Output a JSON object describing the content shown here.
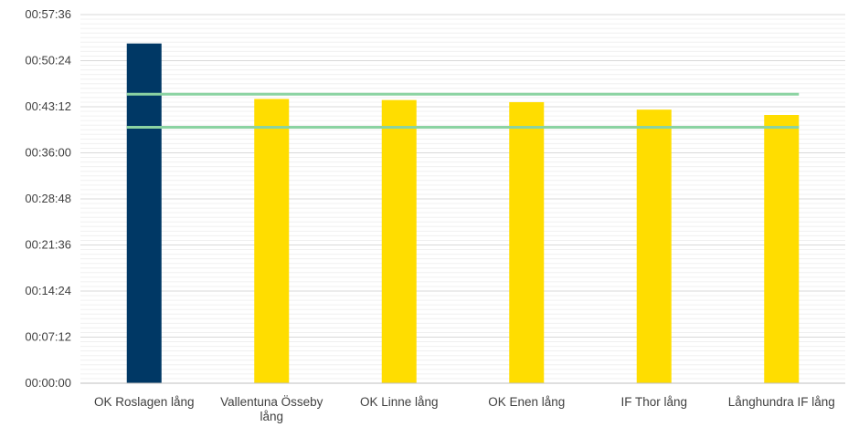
{
  "chart_data": {
    "type": "bar",
    "title": "",
    "xlabel": "",
    "ylabel": "",
    "categories": [
      [
        "OK Roslagen lång"
      ],
      [
        "Vallentuna Össeby",
        "lång"
      ],
      [
        "OK Linne lång"
      ],
      [
        "OK Enen lång"
      ],
      [
        "IF Thor lång"
      ],
      [
        "Långhundra IF lång"
      ]
    ],
    "values": [
      "00:53:05",
      "00:44:25",
      "00:44:15",
      "00:43:55",
      "00:42:45",
      "00:41:55"
    ],
    "bar_colors": [
      "#003865",
      "#FFDD00",
      "#FFDD00",
      "#FFDD00",
      "#FFDD00",
      "#FFDD00"
    ],
    "reference_lines": [
      {
        "value": "00:45:10",
        "color": "#8BD3A2"
      },
      {
        "value": "00:40:00",
        "color": "#8BD3A2"
      }
    ],
    "y_ticks": [
      "00:00:00",
      "00:07:12",
      "00:14:24",
      "00:21:36",
      "00:28:48",
      "00:36:00",
      "00:43:12",
      "00:50:24",
      "00:57:36"
    ],
    "ylim": [
      "00:00:00",
      "00:57:36"
    ],
    "minor_gridlines": true,
    "grid": true,
    "legend": "none"
  }
}
